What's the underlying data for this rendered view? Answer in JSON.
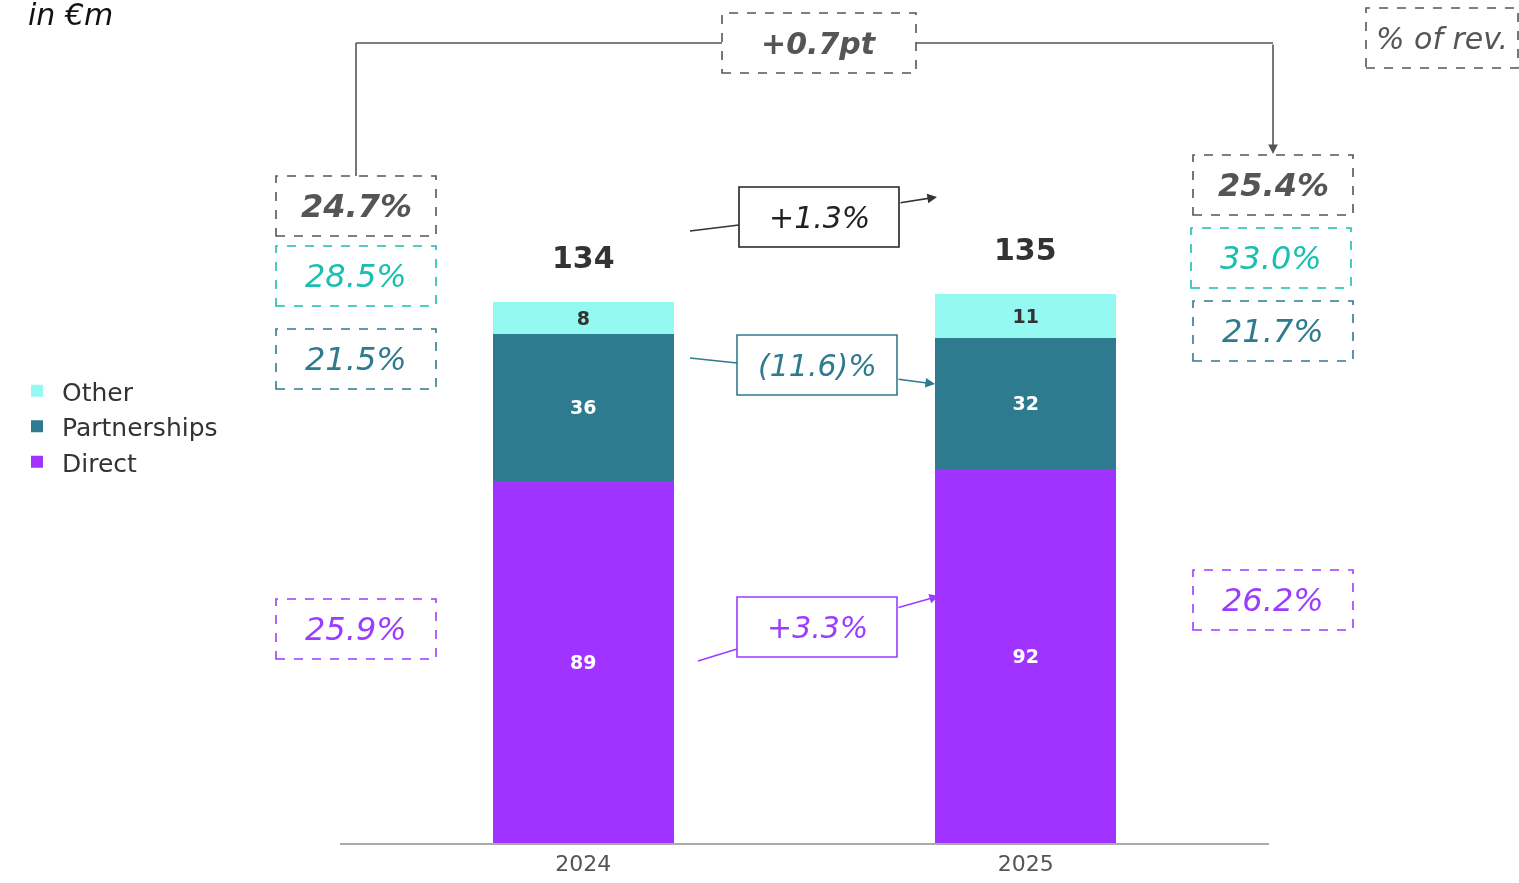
{
  "chart_data": {
    "type": "bar",
    "stacked": true,
    "categories": [
      "2024",
      "2025"
    ],
    "series": [
      {
        "name": "Direct",
        "color": "#a033ff",
        "values": [
          89,
          92
        ]
      },
      {
        "name": "Partnerships",
        "color": "#2e7a8f",
        "values": [
          36,
          32
        ]
      },
      {
        "name": "Other",
        "color": "#94f9f0",
        "values": [
          8,
          11
        ]
      }
    ],
    "data_labels": true,
    "totals": [
      "134",
      "135"
    ],
    "legend": "left",
    "grid": false,
    "annotations": [
      "in €m",
      "% of rev.",
      "+0.7pt",
      "24.7%",
      "28.5%",
      "21.5%",
      "25.9%",
      "25.4%",
      "33.0%",
      "21.7%",
      "26.2%",
      "+1.3%",
      "(11.6)%",
      "+3.3%"
    ]
  }
}
